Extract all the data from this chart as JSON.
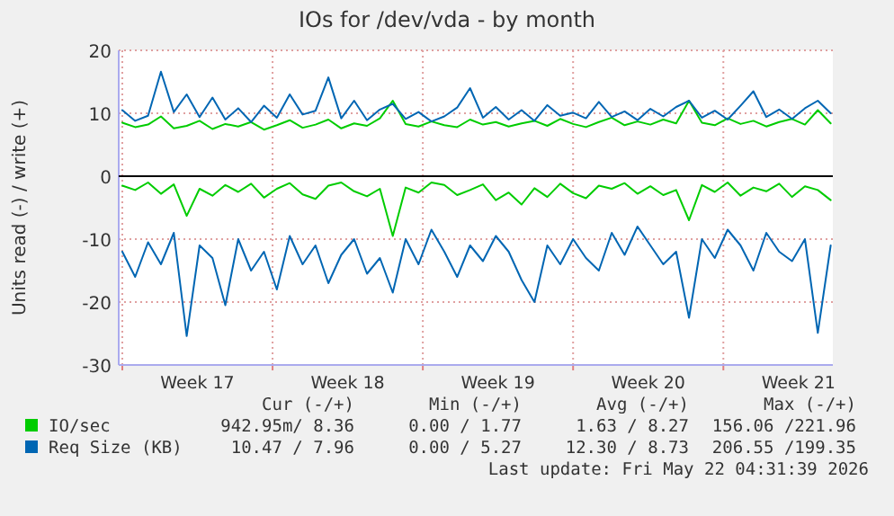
{
  "chart_data": {
    "type": "line",
    "title": "IOs for /dev/vda - by month",
    "ylabel": "Units read (-) / write (+)",
    "x": [
      "2026-04-20T00:00",
      "2026-04-20T14:24",
      "2026-04-21T04:48",
      "2026-04-21T19:12",
      "2026-04-22T09:36",
      "2026-04-23T00:00",
      "2026-04-23T14:24",
      "2026-04-24T04:48",
      "2026-04-24T19:12",
      "2026-04-25T09:36",
      "2026-04-26T00:00",
      "2026-04-26T14:24",
      "2026-04-27T04:48",
      "2026-04-27T19:12",
      "2026-04-28T09:36",
      "2026-04-29T00:00",
      "2026-04-29T14:24",
      "2026-04-30T04:48",
      "2026-04-30T19:12",
      "2026-05-01T09:36",
      "2026-05-02T00:00",
      "2026-05-02T14:24",
      "2026-05-03T04:48",
      "2026-05-03T19:12",
      "2026-05-04T09:36",
      "2026-05-05T00:00",
      "2026-05-05T14:24",
      "2026-05-06T04:48",
      "2026-05-06T19:12",
      "2026-05-07T09:36",
      "2026-05-08T00:00",
      "2026-05-08T14:24",
      "2026-05-09T04:48",
      "2026-05-09T19:12",
      "2026-05-10T09:36",
      "2026-05-11T00:00",
      "2026-05-11T14:24",
      "2026-05-12T04:48",
      "2026-05-12T19:12",
      "2026-05-13T09:36",
      "2026-05-14T00:00",
      "2026-05-14T14:24",
      "2026-05-15T04:48",
      "2026-05-15T19:12",
      "2026-05-16T09:36",
      "2026-05-17T00:00",
      "2026-05-17T14:24",
      "2026-05-18T04:48",
      "2026-05-18T19:12",
      "2026-05-19T09:36",
      "2026-05-20T00:00",
      "2026-05-20T14:24",
      "2026-05-21T04:48",
      "2026-05-21T19:12",
      "2026-05-22T09:36",
      "2026-05-23T00:00"
    ],
    "series": [
      {
        "name": "IO/sec",
        "color": "#00cc00",
        "values": [
          8.5,
          7.8,
          8.2,
          9.5,
          7.6,
          8.0,
          8.8,
          7.5,
          8.3,
          7.9,
          8.6,
          7.4,
          8.1,
          8.9,
          7.7,
          8.2,
          9.0,
          7.6,
          8.4,
          8.0,
          9.2,
          12.0,
          8.3,
          7.9,
          8.7,
          8.1,
          7.8,
          9.0,
          8.2,
          8.6,
          7.9,
          8.4,
          8.8,
          8.0,
          9.1,
          8.3,
          7.8,
          8.6,
          9.3,
          8.1,
          8.7,
          8.2,
          9.0,
          8.4,
          12.0,
          8.5,
          8.1,
          9.2,
          8.3,
          8.8,
          7.9,
          8.6,
          9.1,
          8.2,
          10.5,
          8.4
        ]
      },
      {
        "color": "#00cc00",
        "values": [
          -1.5,
          -2.2,
          -1.0,
          -2.8,
          -1.3,
          -6.3,
          -2.0,
          -3.1,
          -1.4,
          -2.5,
          -1.2,
          -3.4,
          -2.0,
          -1.1,
          -2.9,
          -3.6,
          -1.5,
          -1.0,
          -2.4,
          -3.2,
          -2.0,
          -9.5,
          -1.8,
          -2.6,
          -1.0,
          -1.4,
          -3.0,
          -2.2,
          -1.3,
          -3.8,
          -2.6,
          -4.5,
          -1.9,
          -3.3,
          -1.2,
          -2.7,
          -3.5,
          -1.5,
          -2.0,
          -1.1,
          -2.8,
          -1.6,
          -3.0,
          -2.2,
          -7.0,
          -1.4,
          -2.5,
          -1.0,
          -3.1,
          -1.8,
          -2.4,
          -1.2,
          -3.3,
          -1.6,
          -2.2,
          -3.8
        ]
      },
      {
        "name": "Req Size (KB)",
        "color": "#0066b3",
        "values": [
          10.5,
          8.8,
          9.6,
          16.6,
          10.2,
          13.0,
          9.4,
          12.5,
          9.0,
          10.8,
          8.6,
          11.2,
          9.3,
          13.0,
          9.8,
          10.4,
          15.7,
          9.2,
          12.0,
          8.9,
          10.6,
          11.5,
          9.1,
          10.2,
          8.7,
          9.5,
          10.9,
          14.0,
          9.3,
          11.0,
          9.0,
          10.5,
          8.8,
          11.3,
          9.6,
          10.1,
          9.2,
          11.8,
          9.4,
          10.3,
          8.9,
          10.7,
          9.5,
          11.0,
          12.0,
          9.3,
          10.4,
          9.0,
          11.2,
          13.5,
          9.4,
          10.6,
          9.1,
          10.8,
          12.0,
          10.0
        ]
      },
      {
        "color": "#0066b3",
        "values": [
          -12,
          -16,
          -10.5,
          -14,
          -9,
          -25.4,
          -11,
          -13,
          -20.5,
          -10,
          -15,
          -12,
          -18,
          -9.5,
          -14,
          -11,
          -17,
          -12.5,
          -10,
          -15.5,
          -13,
          -18.5,
          -10,
          -14,
          -8.5,
          -12,
          -16,
          -11,
          -13.5,
          -9.5,
          -12,
          -16.5,
          -20,
          -11,
          -14,
          -10,
          -13,
          -15,
          -9,
          -12.5,
          -8,
          -11,
          -14,
          -12,
          -22.5,
          -10,
          -13,
          -8.5,
          -11,
          -15,
          -9,
          -12,
          -13.5,
          -10,
          -24.9,
          -11
        ]
      }
    ],
    "xlim": [
      "2026-04-19T20:00",
      "2026-05-23T02:24"
    ],
    "xticks": [
      {
        "value": "2026-04-20",
        "label": null
      },
      {
        "value": "2026-04-23T12:00",
        "label": "Week 17"
      },
      {
        "value": "2026-04-27",
        "label": null
      },
      {
        "value": "2026-04-30T12:00",
        "label": "Week 18"
      },
      {
        "value": "2026-05-04",
        "label": null
      },
      {
        "value": "2026-05-07T12:00",
        "label": "Week 19"
      },
      {
        "value": "2026-05-11",
        "label": null
      },
      {
        "value": "2026-05-14T12:00",
        "label": "Week 20"
      },
      {
        "value": "2026-05-18",
        "label": null
      },
      {
        "value": "2026-05-21T12:00",
        "label": "Week 21"
      }
    ],
    "ylim": [
      -30,
      20
    ],
    "yticks": [
      -30,
      -20,
      -10,
      0,
      10,
      20
    ],
    "ref_lines": [
      {
        "axis": "y",
        "value": 0,
        "color": "#000000"
      }
    ],
    "grid": true,
    "legend": "bottom",
    "marker": "none",
    "line_style": "solid",
    "annotations": [
      "Cur (-/+)",
      "Min (-/+)",
      "Avg (-/+)",
      "Max (-/+)",
      "942.95m/ 8.36",
      "0.00 / 1.77",
      "1.63 / 8.27",
      "156.06 /221.96",
      "10.47 / 7.96",
      "0.00 / 5.27",
      "12.30 / 8.73",
      "206.55 /199.35",
      "Last update: Fri May 22 04:31:39 2026"
    ]
  }
}
